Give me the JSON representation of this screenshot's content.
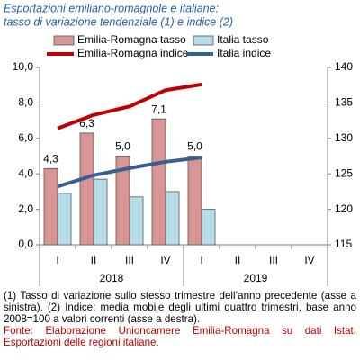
{
  "chart_data": {
    "type": "bar",
    "title": [
      "Esportazioni emiliano-romagnole e italiane:",
      "tasso di variazione tendenziale (1) e indice (2)"
    ],
    "categories": [
      "I",
      "II",
      "III",
      "IV",
      "I",
      "II",
      "III",
      "IV"
    ],
    "years": [
      "2018",
      "2019"
    ],
    "series": [
      {
        "name": "Emilia-Romagna tasso",
        "type": "bar",
        "axis": "y",
        "color": "#d99594",
        "values": [
          4.3,
          6.3,
          5.0,
          7.1,
          5.0,
          null,
          null,
          null
        ],
        "value_labels": [
          "4,3",
          "6,3",
          "5,0",
          "7,1",
          "5,0",
          null,
          null,
          null
        ]
      },
      {
        "name": "Italia tasso",
        "type": "bar",
        "axis": "y",
        "color": "#b7dde8",
        "values": [
          2.9,
          3.7,
          2.7,
          3.0,
          2.0,
          null,
          null,
          null
        ]
      },
      {
        "name": "Emilia-Romagna indice",
        "type": "line",
        "axis": "y2",
        "color": "#c00000",
        "values": [
          131.4,
          133.3,
          134.5,
          136.8,
          137.6,
          null,
          null,
          null
        ]
      },
      {
        "name": "Italia indice",
        "type": "line",
        "axis": "y2",
        "color": "#376092",
        "values": [
          123.2,
          124.8,
          125.8,
          126.7,
          127.3,
          null,
          null,
          null
        ]
      }
    ],
    "ylim": [
      0,
      10
    ],
    "yticks": [
      {
        "value": 0,
        "label": "0,0"
      },
      {
        "value": 2,
        "label": "2,0"
      },
      {
        "value": 4,
        "label": "4,0"
      },
      {
        "value": 6,
        "label": "6,0"
      },
      {
        "value": 8,
        "label": "8,0"
      },
      {
        "value": 10,
        "label": "10,0"
      }
    ],
    "y2lim": [
      115,
      140
    ],
    "y2ticks": [
      115,
      120,
      125,
      130,
      135,
      140
    ],
    "notes": "(1) Tasso di variazione sullo stesso trimestre dell’anno precedente (asse a sinistra). (2) Indice: media mobile degli ultimi quattro trimestri, base anno 2008=100 a valori correnti (asse a destra).",
    "source": "Fonte: Elaborazione Unioncamere Emilia-Romagna su dati Istat, Esportazioni delle regioni italiane."
  }
}
